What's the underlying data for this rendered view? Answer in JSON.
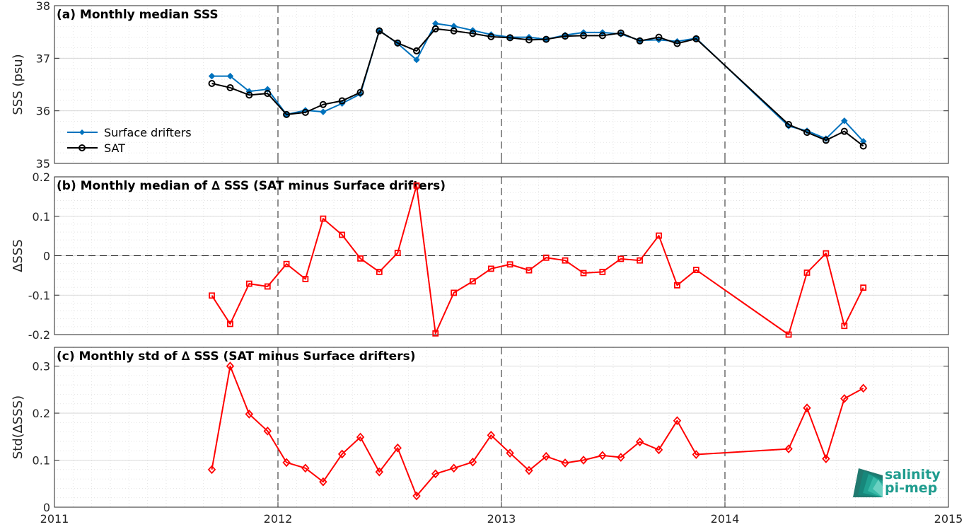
{
  "colors": {
    "drifters": "#0072BD",
    "sat": "#000000",
    "delta": "#FF0000",
    "axis": "#262626",
    "grid": "#DFDFDF",
    "logo": "#1f9c8e"
  },
  "logo": {
    "line1": "salinity",
    "line2": "pi-mep"
  },
  "x_ticks": [
    "2011",
    "2012",
    "2013",
    "2014",
    "2015"
  ],
  "chart_data": [
    {
      "type": "line",
      "title": "(a) Monthly median SSS",
      "ylabel": "SSS (psu)",
      "xlim": [
        "2011-01-01",
        "2015-01-01"
      ],
      "ylim": [
        35,
        38
      ],
      "yticks": [
        35,
        36,
        37,
        38
      ],
      "ytick_labels": [
        "35",
        "36",
        "37",
        "38"
      ],
      "legend_position": "lower-left",
      "x": [
        "2011-09-15",
        "2011-10-15",
        "2011-11-15",
        "2011-12-15",
        "2012-01-15",
        "2012-02-15",
        "2012-03-15",
        "2012-04-15",
        "2012-05-15",
        "2012-06-15",
        "2012-07-15",
        "2012-08-15",
        "2012-09-15",
        "2012-10-15",
        "2012-11-15",
        "2012-12-15",
        "2013-01-15",
        "2013-02-15",
        "2013-03-15",
        "2013-04-15",
        "2013-05-15",
        "2013-06-15",
        "2013-07-15",
        "2013-08-15",
        "2013-09-15",
        "2013-10-15",
        "2013-11-15",
        "2014-04-15",
        "2014-05-15",
        "2014-06-15",
        "2014-07-15",
        "2014-08-15"
      ],
      "series": [
        {
          "name": "Surface drifters",
          "marker": "dot",
          "values": [
            36.66,
            36.66,
            36.37,
            36.41,
            35.93,
            36.01,
            35.98,
            36.14,
            36.32,
            37.53,
            37.28,
            36.97,
            37.66,
            37.61,
            37.53,
            37.45,
            37.4,
            37.4,
            37.36,
            37.44,
            37.49,
            37.49,
            37.46,
            37.34,
            37.35,
            37.32,
            37.38,
            35.71,
            35.62,
            35.47,
            35.81,
            35.42
          ]
        },
        {
          "name": "SAT",
          "marker": "circle",
          "values": [
            36.52,
            36.44,
            36.3,
            36.33,
            35.93,
            35.97,
            36.12,
            36.19,
            36.35,
            37.52,
            37.29,
            37.14,
            37.56,
            37.52,
            37.47,
            37.41,
            37.39,
            37.35,
            37.36,
            37.42,
            37.43,
            37.43,
            37.48,
            37.33,
            37.4,
            37.28,
            37.37,
            35.74,
            35.59,
            35.44,
            35.61,
            35.33
          ]
        }
      ]
    },
    {
      "type": "line",
      "title": "(b) Monthly median of ∆ SSS (SAT minus Surface drifters)",
      "ylabel": "∆SSS",
      "xlim": [
        "2011-01-01",
        "2015-01-01"
      ],
      "ylim": [
        -0.2,
        0.2
      ],
      "yticks": [
        -0.2,
        -0.1,
        0,
        0.1,
        0.2
      ],
      "ytick_labels": [
        "-0.2",
        "-0.1",
        "0",
        "0.1",
        "0.2"
      ],
      "zero_line": true,
      "x": [
        "2011-09-15",
        "2011-10-15",
        "2011-11-15",
        "2011-12-15",
        "2012-01-15",
        "2012-02-15",
        "2012-03-15",
        "2012-04-15",
        "2012-05-15",
        "2012-06-15",
        "2012-07-15",
        "2012-08-15",
        "2012-09-15",
        "2012-10-15",
        "2012-11-15",
        "2012-12-15",
        "2013-01-15",
        "2013-02-15",
        "2013-03-15",
        "2013-04-15",
        "2013-05-15",
        "2013-06-15",
        "2013-07-15",
        "2013-08-15",
        "2013-09-15",
        "2013-10-15",
        "2013-11-15",
        "2014-04-15",
        "2014-05-15",
        "2014-06-15",
        "2014-07-15",
        "2014-08-15"
      ],
      "series": [
        {
          "marker": "square",
          "values": [
            -0.101,
            -0.173,
            -0.071,
            -0.078,
            -0.021,
            -0.059,
            0.094,
            0.053,
            -0.007,
            -0.041,
            0.007,
            0.178,
            -0.197,
            -0.094,
            -0.065,
            -0.033,
            -0.022,
            -0.037,
            -0.005,
            -0.012,
            -0.044,
            -0.041,
            -0.008,
            -0.012,
            0.051,
            -0.075,
            -0.036,
            -0.2,
            -0.043,
            0.006,
            -0.178,
            -0.081
          ]
        }
      ]
    },
    {
      "type": "line",
      "title": "(c) Monthly std of ∆ SSS (SAT minus Surface drifters)",
      "ylabel": "Std(∆SSS)",
      "xlim": [
        "2011-01-01",
        "2015-01-01"
      ],
      "ylim": [
        0,
        0.34
      ],
      "yticks": [
        0,
        0.1,
        0.2,
        0.3
      ],
      "ytick_labels": [
        "0",
        "0.1",
        "0.2",
        "0.3"
      ],
      "x": [
        "2011-09-15",
        "2011-10-15",
        "2011-11-15",
        "2011-12-15",
        "2012-01-15",
        "2012-02-15",
        "2012-03-15",
        "2012-04-15",
        "2012-05-15",
        "2012-06-15",
        "2012-07-15",
        "2012-08-15",
        "2012-09-15",
        "2012-10-15",
        "2012-11-15",
        "2012-12-15",
        "2013-01-15",
        "2013-02-15",
        "2013-03-15",
        "2013-04-15",
        "2013-05-15",
        "2013-06-15",
        "2013-07-15",
        "2013-08-15",
        "2013-09-15",
        "2013-10-15",
        "2013-11-15",
        "2014-04-15",
        "2014-05-15",
        "2014-06-15",
        "2014-07-15",
        "2014-08-15"
      ],
      "series": [
        {
          "marker": "diamond",
          "values": [
            0.08,
            0.3,
            0.198,
            0.162,
            0.095,
            0.083,
            0.054,
            0.113,
            0.149,
            0.075,
            0.126,
            0.024,
            0.071,
            0.083,
            0.096,
            0.153,
            0.115,
            0.078,
            0.108,
            0.094,
            0.1,
            0.11,
            0.106,
            0.139,
            0.122,
            0.184,
            0.112,
            0.124,
            0.211,
            0.103,
            0.231,
            0.253
          ]
        }
      ]
    }
  ]
}
